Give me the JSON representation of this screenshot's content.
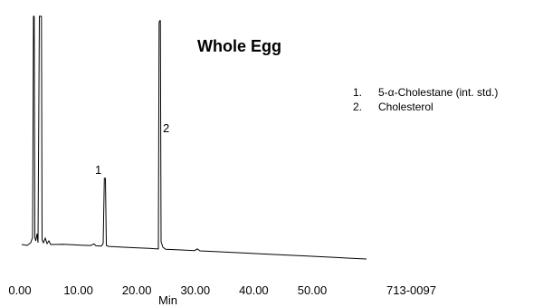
{
  "chart_data": {
    "type": "line",
    "title": "Whole Egg",
    "xlabel": "Min",
    "ylabel": "",
    "xlim": [
      0,
      50
    ],
    "x_ticks": [
      "0.00",
      "10.00",
      "20.00",
      "30.00",
      "40.00",
      "50.00"
    ],
    "x_tick_values": [
      0,
      10,
      20,
      30,
      40,
      50
    ],
    "grid": false,
    "legend_position": "top-right",
    "legend": [
      {
        "number": "1.",
        "label": "5-α-Cholestane (int. std.)"
      },
      {
        "number": "2.",
        "label": "Cholesterol"
      }
    ],
    "peaks": [
      {
        "label": "1",
        "name": "5-α-Cholestane (int. std.)",
        "retention_min": 14.3
      },
      {
        "label": "2",
        "name": "Cholesterol",
        "retention_min": 24.4
      }
    ],
    "annotation_code": "713-0097"
  }
}
